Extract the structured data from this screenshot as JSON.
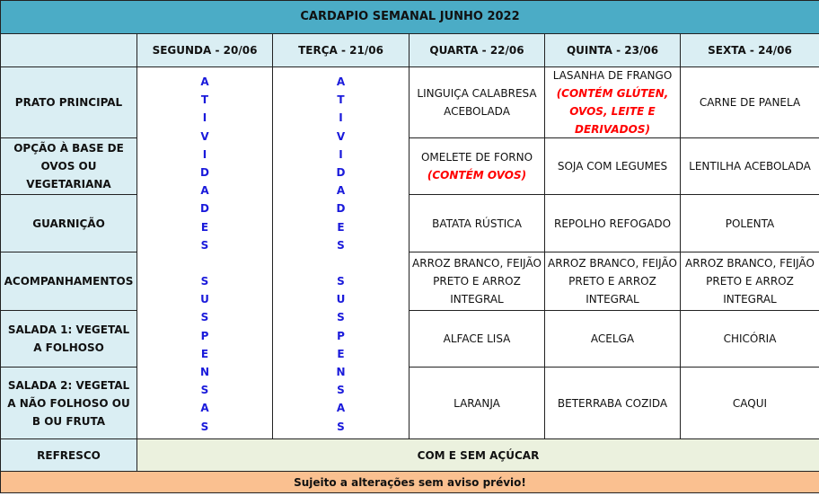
{
  "title": "CARDAPIO SEMANAL JUNHO 2022",
  "days": [
    "SEGUNDA - 20/06",
    "TERÇA - 21/06",
    "QUARTA - 22/06",
    "QUINTA - 23/06",
    "SEXTA - 24/06"
  ],
  "rows": [
    {
      "label": "PRATO PRINCIPAL",
      "cells": [
        {
          "text": "LINGUIÇA CALABRESA ACEBOLADA",
          "note": ""
        },
        {
          "text": "LASANHA DE FRANGO",
          "note": "(CONTÉM GLÚTEN, OVOS, LEITE E DERIVADOS)"
        },
        {
          "text": "CARNE DE PANELA",
          "note": ""
        }
      ]
    },
    {
      "label": "OPÇÃO À BASE DE OVOS OU VEGETARIANA",
      "cells": [
        {
          "text": "OMELETE DE FORNO",
          "note": "(CONTÉM OVOS)"
        },
        {
          "text": "SOJA COM LEGUMES",
          "note": ""
        },
        {
          "text": "LENTILHA ACEBOLADA",
          "note": ""
        }
      ]
    },
    {
      "label": "GUARNIÇÃO",
      "cells": [
        {
          "text": "BATATA RÚSTICA",
          "note": ""
        },
        {
          "text": "REPOLHO REFOGADO",
          "note": ""
        },
        {
          "text": "POLENTA",
          "note": ""
        }
      ]
    },
    {
      "label": "ACOMPANHAMENTOS",
      "cells": [
        {
          "text": "ARROZ BRANCO, FEIJÃO PRETO E ARROZ INTEGRAL",
          "note": ""
        },
        {
          "text": "ARROZ BRANCO, FEIJÃO PRETO E ARROZ INTEGRAL",
          "note": ""
        },
        {
          "text": "ARROZ BRANCO, FEIJÃO PRETO E ARROZ INTEGRAL",
          "note": ""
        }
      ]
    },
    {
      "label": "SALADA 1: VEGETAL A FOLHOSO",
      "cells": [
        {
          "text": "ALFACE LISA",
          "note": ""
        },
        {
          "text": "ACELGA",
          "note": ""
        },
        {
          "text": "CHICÓRIA",
          "note": ""
        }
      ]
    },
    {
      "label": "SALADA 2: VEGETAL A NÃO FOLHOSO OU B OU FRUTA",
      "cells": [
        {
          "text": "LARANJA",
          "note": ""
        },
        {
          "text": "BETERRABA COZIDA",
          "note": ""
        },
        {
          "text": "CAQUI",
          "note": ""
        }
      ]
    }
  ],
  "suspended_text": "ATIVIDADES SUSPENSAS",
  "refresco": {
    "label": "REFRESCO",
    "value": "COM E SEM AÇÚCAR"
  },
  "footer": "Sujeito a alterações sem aviso prévio!",
  "colors": {
    "title_bg": "#4bacc6",
    "header_bg": "#daeef3",
    "refresco_bg": "#ebf1de",
    "footer_bg": "#fac090",
    "suspended_text": "#1a1adb",
    "allergen_text": "#ff0000"
  }
}
